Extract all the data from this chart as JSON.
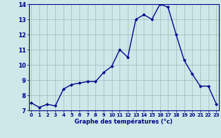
{
  "hours": [
    0,
    1,
    2,
    3,
    4,
    5,
    6,
    7,
    8,
    9,
    10,
    11,
    12,
    13,
    14,
    15,
    16,
    17,
    18,
    19,
    20,
    21,
    22,
    23
  ],
  "temps": [
    7.5,
    7.2,
    7.4,
    7.3,
    8.4,
    8.7,
    8.8,
    8.9,
    8.9,
    9.5,
    9.9,
    11.0,
    10.5,
    13.0,
    13.3,
    13.0,
    14.0,
    13.8,
    12.0,
    10.3,
    9.4,
    8.6,
    8.6,
    7.4
  ],
  "xlabel": "Graphe des températures (°c)",
  "ylim": [
    7,
    14
  ],
  "xlim_min": -0.3,
  "xlim_max": 23.3,
  "yticks": [
    7,
    8,
    9,
    10,
    11,
    12,
    13,
    14
  ],
  "xticks": [
    0,
    1,
    2,
    3,
    4,
    5,
    6,
    7,
    8,
    9,
    10,
    11,
    12,
    13,
    14,
    15,
    16,
    17,
    18,
    19,
    20,
    21,
    22,
    23
  ],
  "line_color": "#00008B",
  "marker_color": "#00008B",
  "bg_color": "#cce8e8",
  "grid_color": "#a0b8b8",
  "axis_color": "#00008B",
  "label_color": "#00008B",
  "tick_fontsize": 5,
  "xlabel_fontsize": 6,
  "linewidth": 1.0,
  "markersize": 2.0
}
